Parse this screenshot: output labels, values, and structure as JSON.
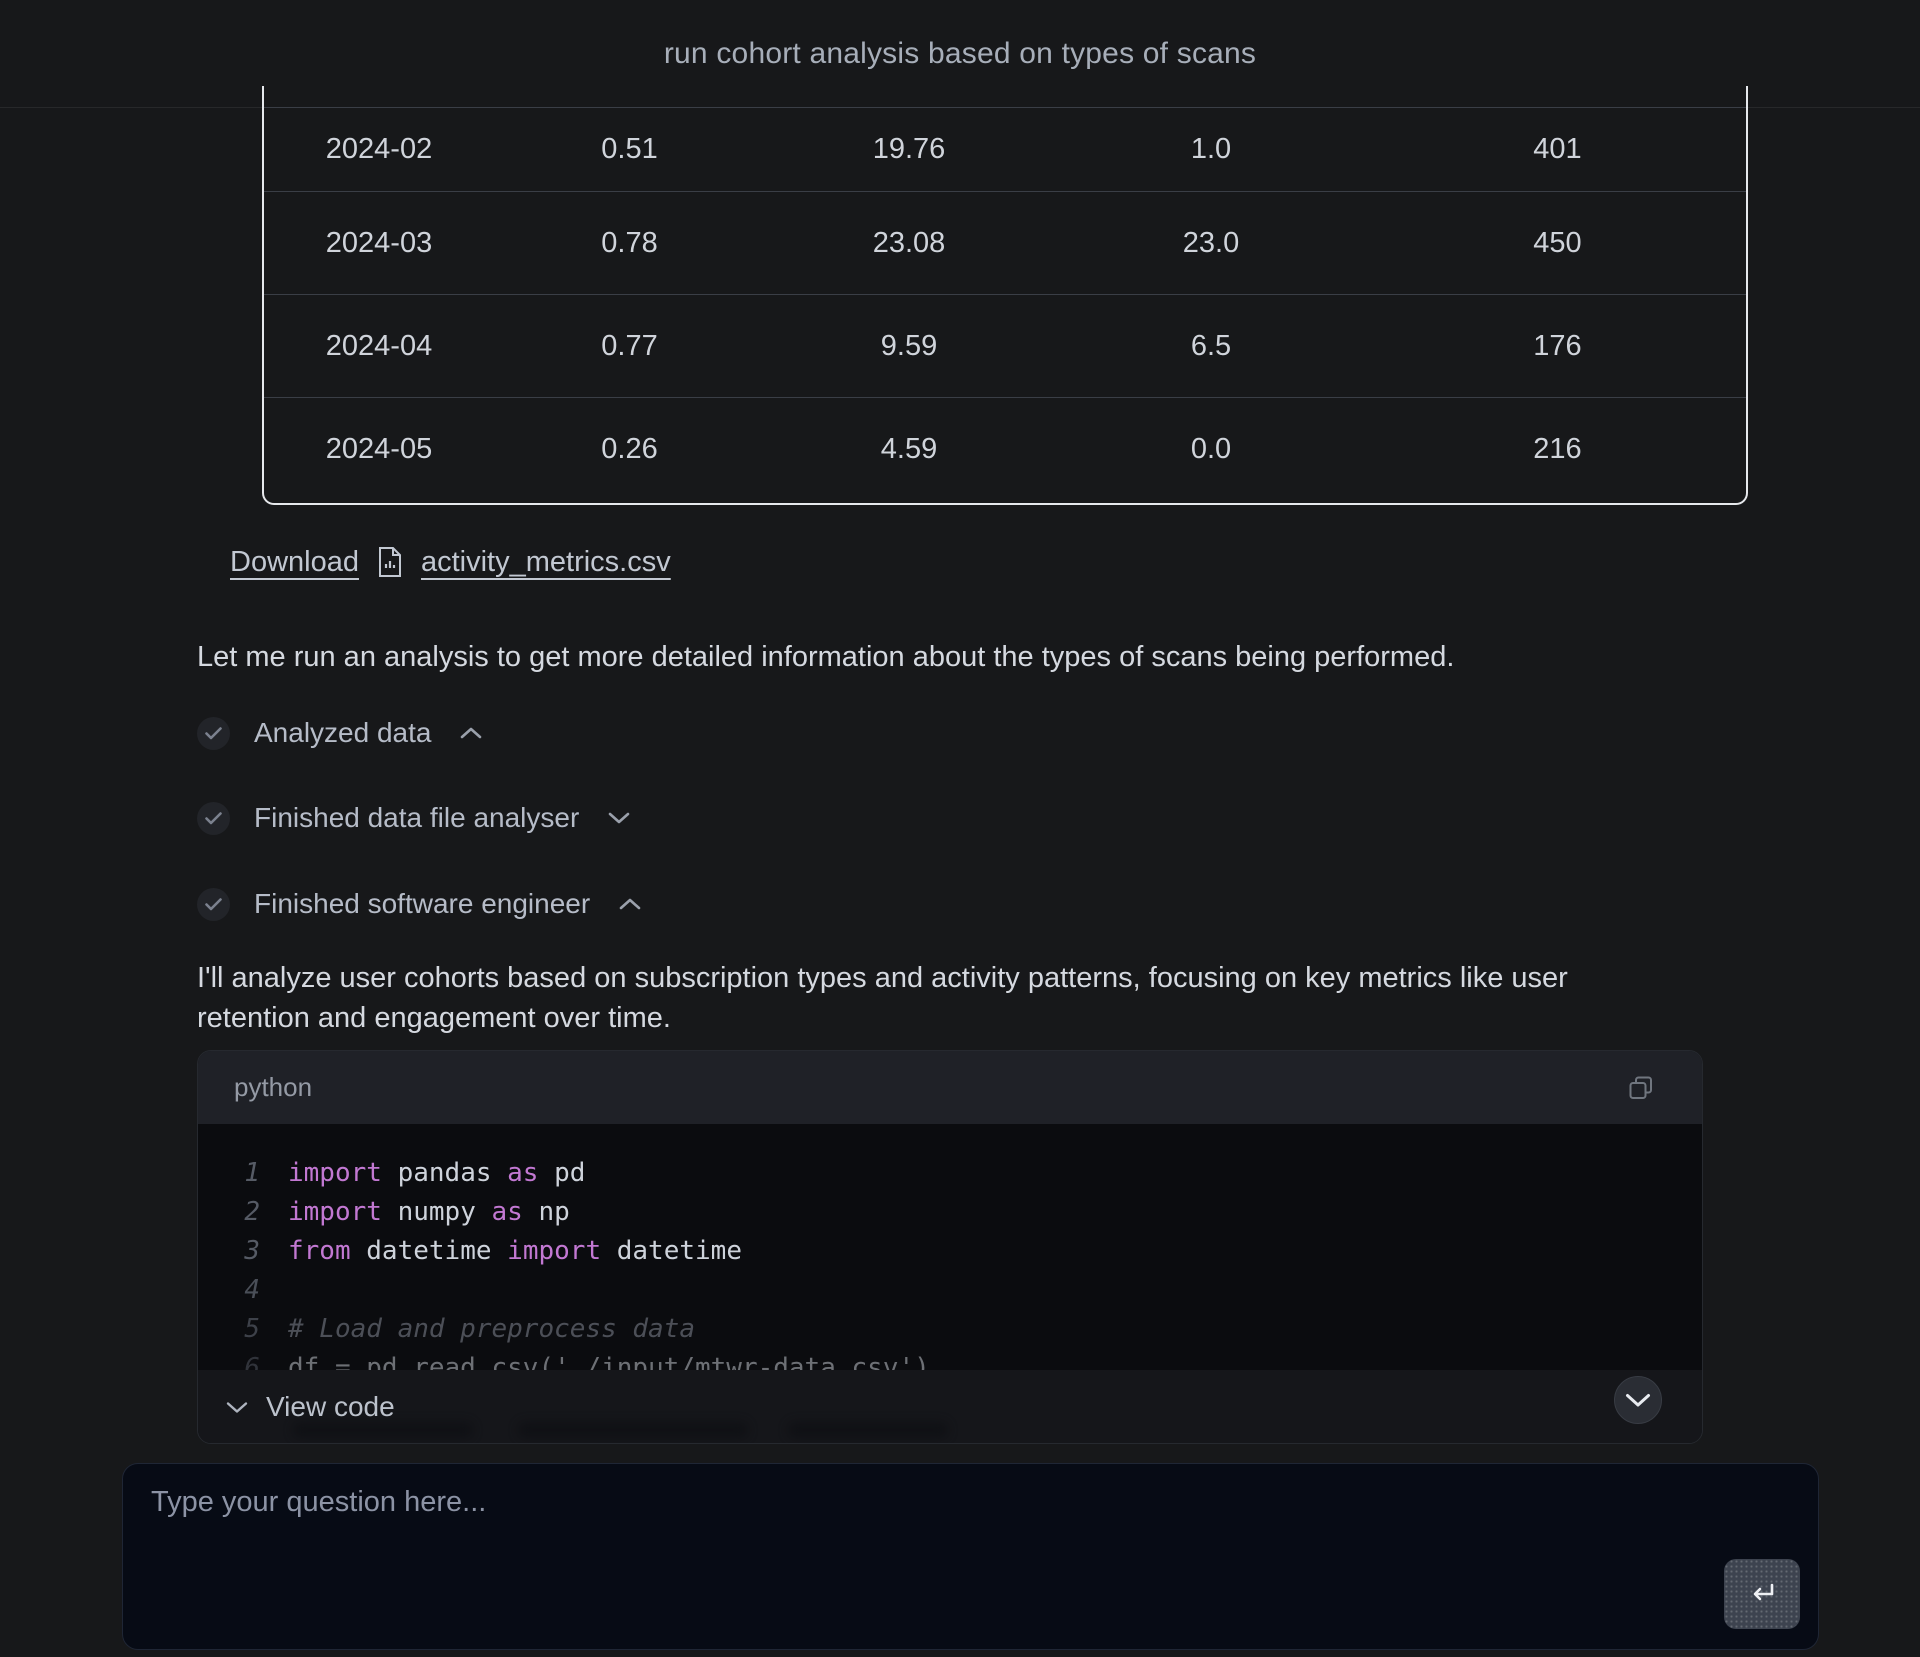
{
  "header": {
    "title": "run cohort analysis based on types of scans"
  },
  "table": {
    "rows": [
      [
        "2024-02",
        "0.51",
        "19.76",
        "1.0",
        "401"
      ],
      [
        "2024-03",
        "0.78",
        "23.08",
        "23.0",
        "450"
      ],
      [
        "2024-04",
        "0.77",
        "9.59",
        "6.5",
        "176"
      ],
      [
        "2024-05",
        "0.26",
        "4.59",
        "0.0",
        "216"
      ]
    ]
  },
  "download": {
    "label": "Download",
    "file_icon": "csv-file-icon",
    "filename": "activity_metrics.csv"
  },
  "messages": {
    "intro": "Let me run an analysis to get more detailed information about the types of scans being performed.",
    "analysis_note": "I'll analyze user cohorts based on subscription types and activity patterns, focusing on key metrics like user retention and engagement over time."
  },
  "steps": [
    {
      "label": "Analyzed data",
      "icon": "check-circle-icon",
      "state": "expanded"
    },
    {
      "label": "Finished data file analyser",
      "icon": "check-circle-icon",
      "state": "collapsed"
    },
    {
      "label": "Finished software engineer",
      "icon": "check-circle-icon",
      "state": "expanded"
    }
  ],
  "code_block": {
    "language": "python",
    "copy_icon": "copy-icon",
    "lines": [
      {
        "n": "1",
        "parts": [
          [
            "kw",
            "import"
          ],
          [
            "pl",
            " pandas "
          ],
          [
            "kw",
            "as"
          ],
          [
            "pl",
            " pd"
          ]
        ]
      },
      {
        "n": "2",
        "parts": [
          [
            "kw",
            "import"
          ],
          [
            "pl",
            " numpy "
          ],
          [
            "kw",
            "as"
          ],
          [
            "pl",
            " np"
          ]
        ]
      },
      {
        "n": "3",
        "parts": [
          [
            "kw",
            "from"
          ],
          [
            "pl",
            " datetime "
          ],
          [
            "kw",
            "import"
          ],
          [
            "pl",
            " datetime"
          ]
        ]
      },
      {
        "n": "4",
        "parts": []
      },
      {
        "n": "5",
        "parts": [
          [
            "cm",
            "# Load and preprocess data"
          ]
        ]
      },
      {
        "n": "6",
        "parts": [
          [
            "pl",
            "df = pd.read_csv('./input/mtwr-data.csv')"
          ]
        ]
      }
    ],
    "footer_label": "View code"
  },
  "composer": {
    "placeholder": "Type your question here...",
    "send_icon": "return-arrow-icon"
  },
  "colors": {
    "page_bg": "#17181a",
    "accent_keyword": "#c278d2",
    "table_border": "#e6e8ec",
    "code_bg": "#0b0c0f",
    "composer_bg": "#070b15"
  }
}
